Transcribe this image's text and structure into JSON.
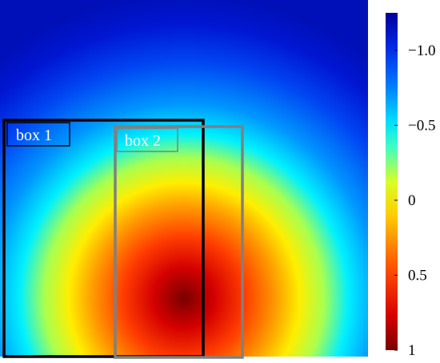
{
  "chart_data": {
    "type": "heatmap",
    "title": "",
    "xlabel": "",
    "ylabel": "",
    "field": {
      "description_of_peak": "radial maximum near bottom center",
      "peak_value": 1,
      "background_value": -1.2,
      "peak_location_fraction": {
        "x": 0.5,
        "y": 0.84
      }
    },
    "colorbar": {
      "colormap": "jet",
      "range": [
        1,
        -1.25
      ],
      "tick_values": [
        -1.0,
        -0.5,
        0,
        0.5,
        1
      ],
      "tick_labels": [
        "−1.0",
        "−0.5",
        "0",
        "0.5",
        "1"
      ]
    },
    "boxes": [
      {
        "id": "box-1",
        "label": "box 1",
        "color": "#000000"
      },
      {
        "id": "box-2",
        "label": "box 2",
        "color": "#808080"
      }
    ]
  }
}
